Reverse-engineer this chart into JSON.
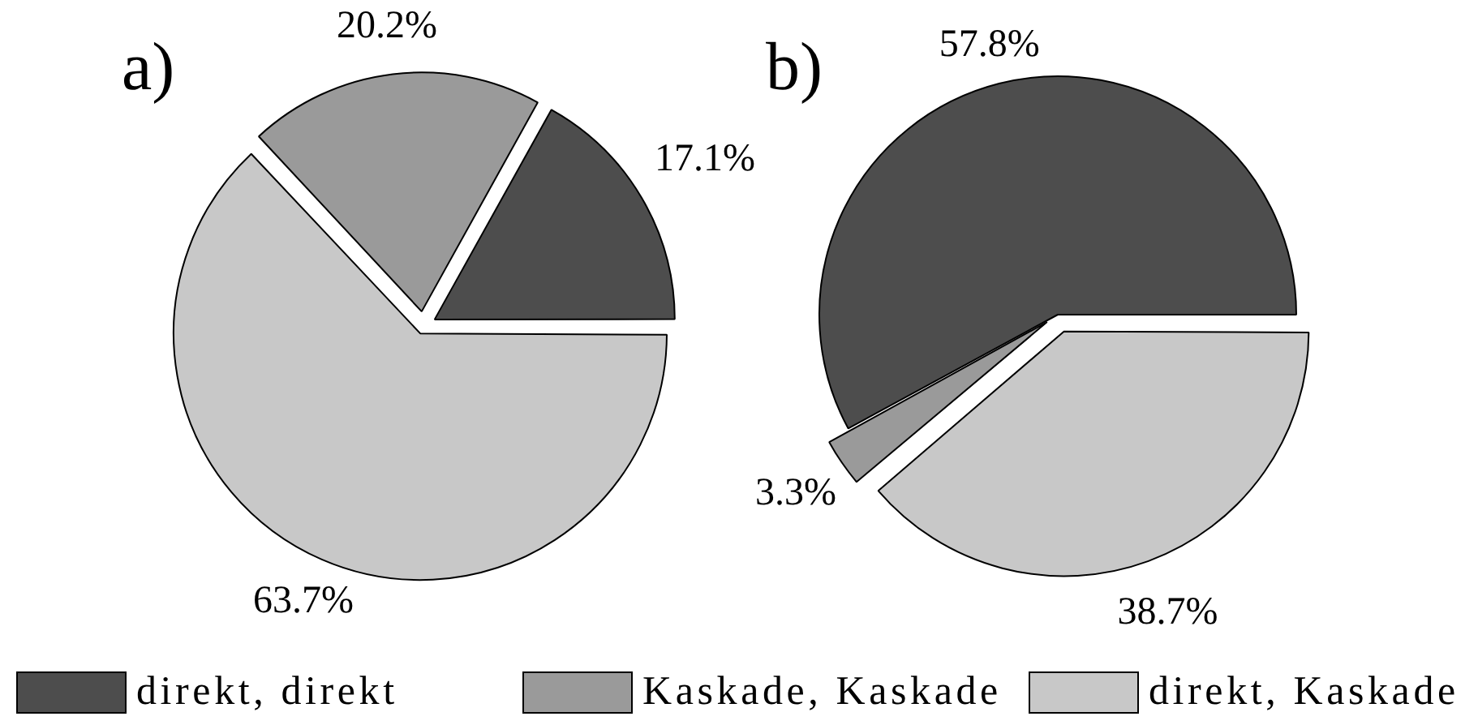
{
  "chart_data": {
    "type": "pie",
    "categories": [
      "direkt, direkt",
      "Kaskade, Kaskade",
      "direkt, Kaskade"
    ],
    "colors": [
      "#4d4d4d",
      "#9a9a9a",
      "#c8c8c8"
    ],
    "legend": "bottom",
    "series": [
      {
        "name": "a)",
        "values": [
          17.1,
          20.2,
          63.7
        ],
        "value_labels": [
          "17.1%",
          "20.2%",
          "63.7%"
        ]
      },
      {
        "name": "b)",
        "values": [
          57.8,
          3.3,
          38.7
        ],
        "value_labels": [
          "57.8%",
          "3.3%",
          "38.7%"
        ]
      }
    ]
  }
}
